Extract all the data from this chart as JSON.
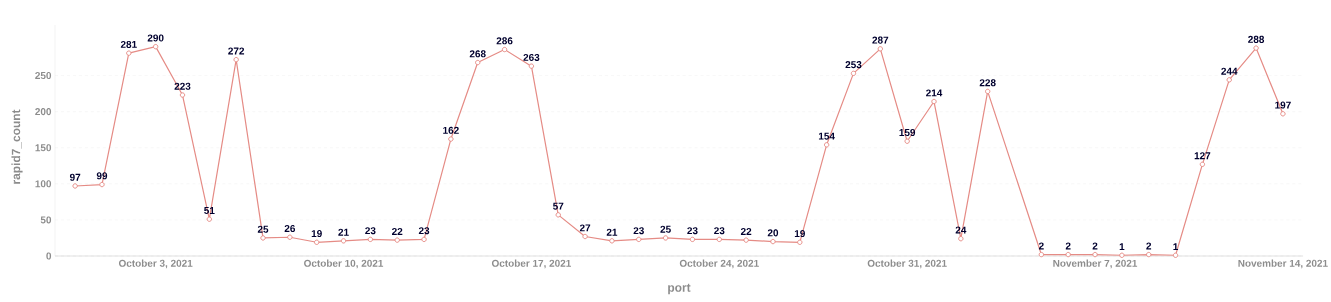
{
  "chart_data": {
    "type": "line",
    "xlabel": "port",
    "ylabel": "rapid7_count",
    "x": [
      "2021-09-30",
      "2021-10-01",
      "2021-10-02",
      "2021-10-03",
      "2021-10-04",
      "2021-10-05",
      "2021-10-06",
      "2021-10-07",
      "2021-10-08",
      "2021-10-09",
      "2021-10-10",
      "2021-10-11",
      "2021-10-12",
      "2021-10-13",
      "2021-10-14",
      "2021-10-15",
      "2021-10-16",
      "2021-10-17",
      "2021-10-18",
      "2021-10-19",
      "2021-10-20",
      "2021-10-21",
      "2021-10-22",
      "2021-10-23",
      "2021-10-24",
      "2021-10-25",
      "2021-10-26",
      "2021-10-27",
      "2021-10-28",
      "2021-10-29",
      "2021-10-30",
      "2021-10-31",
      "2021-11-01",
      "2021-11-02",
      "2021-11-03",
      "2021-11-05",
      "2021-11-06",
      "2021-11-07",
      "2021-11-08",
      "2021-11-09",
      "2021-11-10",
      "2021-11-11",
      "2021-11-12",
      "2021-11-13",
      "2021-11-14"
    ],
    "series": [
      {
        "color": "#e58b85",
        "values": [
          97,
          99,
          281,
          290,
          223,
          51,
          272,
          25,
          26,
          19,
          21,
          23,
          22,
          23,
          162,
          268,
          286,
          263,
          57,
          27,
          21,
          23,
          25,
          23,
          23,
          22,
          20,
          19,
          154,
          253,
          287,
          159,
          214,
          24,
          228,
          2,
          2,
          2,
          1,
          2,
          1,
          127,
          244,
          288,
          197
        ]
      }
    ],
    "data_labels": true,
    "marker": "circle",
    "line_style": "solid",
    "grid": "y",
    "xlim": [
      "2021-09-29T06:00",
      "2021-11-14T18:00"
    ],
    "xticks": [
      {
        "value": "2021-10-03",
        "label": "October 3, 2021"
      },
      {
        "value": "2021-10-10",
        "label": "October 10, 2021"
      },
      {
        "value": "2021-10-17",
        "label": "October 17, 2021"
      },
      {
        "value": "2021-10-24",
        "label": "October 24, 2021"
      },
      {
        "value": "2021-10-31",
        "label": "October 31, 2021"
      },
      {
        "value": "2021-11-07",
        "label": "November 7, 2021"
      },
      {
        "value": "2021-11-14",
        "label": "November 14, 2021"
      }
    ],
    "ylim": [
      0,
      320
    ],
    "yticks": [
      0,
      50,
      100,
      150,
      200,
      250
    ]
  }
}
